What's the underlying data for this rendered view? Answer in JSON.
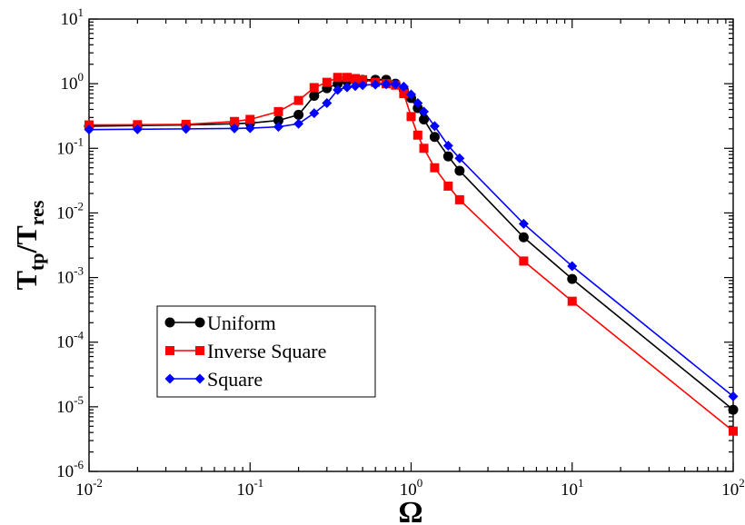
{
  "chart_data": {
    "type": "line",
    "xscale": "log",
    "yscale": "log",
    "xlim": [
      0.01,
      100
    ],
    "ylim": [
      1e-06,
      10
    ],
    "xticks": [
      {
        "base": "10",
        "exp": "-2",
        "value": 0.01
      },
      {
        "base": "10",
        "exp": "-1",
        "value": 0.1
      },
      {
        "base": "10",
        "exp": "0",
        "value": 1
      },
      {
        "base": "10",
        "exp": "1",
        "value": 10
      },
      {
        "base": "10",
        "exp": "2",
        "value": 100
      }
    ],
    "yticks": [
      {
        "base": "10",
        "exp": "-6",
        "value": 1e-06
      },
      {
        "base": "10",
        "exp": "-5",
        "value": 1e-05
      },
      {
        "base": "10",
        "exp": "-4",
        "value": 0.0001
      },
      {
        "base": "10",
        "exp": "-3",
        "value": 0.001
      },
      {
        "base": "10",
        "exp": "-2",
        "value": 0.01
      },
      {
        "base": "10",
        "exp": "-1",
        "value": 0.1
      },
      {
        "base": "10",
        "exp": "0",
        "value": 1
      },
      {
        "base": "10",
        "exp": "1",
        "value": 10
      }
    ],
    "xlabel": "Ω",
    "ylabel": {
      "main": "T",
      "sub1": "tp",
      "slash": "/T",
      "sub2": "res"
    },
    "legend_position": "lower-left",
    "series": [
      {
        "name": "Uniform",
        "color": "#000000",
        "marker": "circle",
        "x": [
          0.01,
          0.02,
          0.04,
          0.08,
          0.1,
          0.15,
          0.2,
          0.25,
          0.3,
          0.35,
          0.4,
          0.45,
          0.5,
          0.6,
          0.7,
          0.8,
          0.9,
          1.0,
          1.1,
          1.2,
          1.4,
          1.7,
          2.0,
          5.0,
          10.0,
          100.0
        ],
        "y": [
          0.22,
          0.225,
          0.23,
          0.24,
          0.245,
          0.27,
          0.33,
          0.65,
          0.85,
          1.0,
          1.1,
          1.15,
          1.15,
          1.15,
          1.15,
          1.0,
          0.8,
          0.6,
          0.42,
          0.28,
          0.15,
          0.075,
          0.045,
          0.0042,
          0.00095,
          9e-06
        ]
      },
      {
        "name": "Inverse Square",
        "color": "#ff0000",
        "marker": "square",
        "x": [
          0.01,
          0.02,
          0.04,
          0.08,
          0.1,
          0.15,
          0.2,
          0.25,
          0.3,
          0.35,
          0.4,
          0.45,
          0.5,
          0.6,
          0.7,
          0.8,
          0.9,
          1.0,
          1.1,
          1.2,
          1.4,
          1.7,
          2.0,
          5.0,
          10.0,
          100.0
        ],
        "y": [
          0.23,
          0.232,
          0.235,
          0.26,
          0.28,
          0.37,
          0.55,
          0.87,
          1.05,
          1.25,
          1.25,
          1.2,
          1.15,
          1.05,
          1.0,
          0.95,
          0.7,
          0.31,
          0.16,
          0.1,
          0.05,
          0.026,
          0.016,
          0.0018,
          0.00043,
          4.2e-06
        ]
      },
      {
        "name": "Square",
        "color": "#0000ff",
        "marker": "diamond",
        "x": [
          0.01,
          0.02,
          0.04,
          0.08,
          0.1,
          0.15,
          0.2,
          0.25,
          0.3,
          0.35,
          0.4,
          0.45,
          0.5,
          0.6,
          0.7,
          0.8,
          0.9,
          1.0,
          1.1,
          1.2,
          1.4,
          1.7,
          2.0,
          5.0,
          10.0,
          100.0
        ],
        "y": [
          0.195,
          0.197,
          0.2,
          0.203,
          0.205,
          0.215,
          0.24,
          0.35,
          0.5,
          0.8,
          0.88,
          0.92,
          0.95,
          0.97,
          0.98,
          0.98,
          0.9,
          0.68,
          0.5,
          0.37,
          0.22,
          0.11,
          0.07,
          0.0068,
          0.0015,
          1.45e-05
        ]
      }
    ]
  }
}
